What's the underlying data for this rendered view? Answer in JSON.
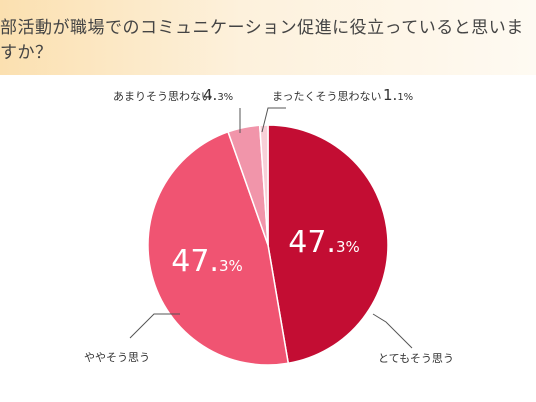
{
  "title": "部活動が職場でのコミュニケーション促進に役立っていると思いますか？",
  "chart_data": {
    "type": "pie",
    "start_angle_deg": 0,
    "direction": "clockwise",
    "slices": [
      {
        "label": "とてもそう思う",
        "value": 47.3,
        "color": "#c30d33",
        "num": "47.",
        "dec": "3%"
      },
      {
        "label": "ややそう思う",
        "value": 47.3,
        "color": "#f05472",
        "num": "47.",
        "dec": "3%"
      },
      {
        "label": "あまりそう思わない",
        "value": 4.3,
        "color": "#f195aa",
        "num": "4.",
        "dec": "3%"
      },
      {
        "label": "まったくそう思わない",
        "value": 1.1,
        "color": "#f8cfd7",
        "num": "1.",
        "dec": "1%"
      }
    ]
  }
}
